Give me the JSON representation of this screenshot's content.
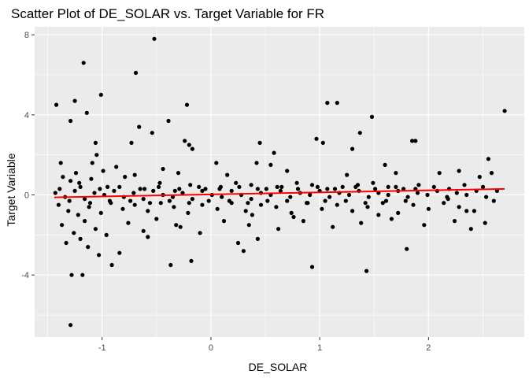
{
  "chart_data": {
    "type": "scatter",
    "title": "Scatter Plot of DE_SOLAR vs. Target Variable for FR",
    "xlabel": "DE_SOLAR",
    "ylabel": "Target Variable",
    "xlim": [
      -1.62,
      2.88
    ],
    "ylim": [
      -7.1,
      8.4
    ],
    "x_ticks": [
      -1,
      0,
      1,
      2
    ],
    "x_tick_labels": [
      "-1",
      "0",
      "1",
      "2"
    ],
    "y_ticks": [
      -4,
      0,
      4,
      8
    ],
    "y_tick_labels": [
      "-4",
      "0",
      "4",
      "8"
    ],
    "grid": true,
    "legend": "none",
    "colors": {
      "panel": "#ebebeb",
      "grid": "#ffffff",
      "points": "#000000",
      "trend": "#ff0000"
    },
    "series": [
      {
        "points": [
          [
            -1.42,
            4.5
          ],
          [
            -1.29,
            3.7
          ],
          [
            -1.25,
            4.7
          ],
          [
            -1.17,
            6.6
          ],
          [
            -1.14,
            4.1
          ],
          [
            -1.01,
            5.0
          ],
          [
            -0.69,
            6.1
          ],
          [
            -0.52,
            7.8
          ],
          [
            -0.66,
            3.4
          ],
          [
            -0.39,
            3.7
          ],
          [
            -0.22,
            4.5
          ],
          [
            -0.24,
            2.7
          ],
          [
            -0.2,
            2.5
          ],
          [
            -0.17,
            2.3
          ],
          [
            -0.54,
            3.1
          ],
          [
            -0.73,
            2.6
          ],
          [
            -1.06,
            2.6
          ],
          [
            -1.05,
            2.0
          ],
          [
            -1.09,
            1.6
          ],
          [
            -1.38,
            1.6
          ],
          [
            -1.28,
            -4.0
          ],
          [
            -1.18,
            -4.0
          ],
          [
            -1.29,
            -6.5
          ],
          [
            -0.91,
            -3.5
          ],
          [
            -0.84,
            -2.9
          ],
          [
            -1.03,
            -3.0
          ],
          [
            -1.13,
            -2.6
          ],
          [
            -0.37,
            -3.5
          ],
          [
            -0.18,
            -3.3
          ],
          [
            -0.32,
            -1.5
          ],
          [
            0.25,
            -2.4
          ],
          [
            0.3,
            -2.8
          ],
          [
            0.43,
            -2.2
          ],
          [
            0.93,
            -3.6
          ],
          [
            1.43,
            -3.8
          ],
          [
            1.8,
            -2.7
          ],
          [
            2.39,
            -1.7
          ],
          [
            0.45,
            2.6
          ],
          [
            0.58,
            2.1
          ],
          [
            0.42,
            1.6
          ],
          [
            0.55,
            1.5
          ],
          [
            0.97,
            2.8
          ],
          [
            1.03,
            2.6
          ],
          [
            1.07,
            4.6
          ],
          [
            1.16,
            4.6
          ],
          [
            1.48,
            3.9
          ],
          [
            1.37,
            3.1
          ],
          [
            1.3,
            2.3
          ],
          [
            1.85,
            2.7
          ],
          [
            1.88,
            2.7
          ],
          [
            2.7,
            4.2
          ],
          [
            2.55,
            1.8
          ],
          [
            1.6,
            1.5
          ],
          [
            2.28,
            1.2
          ],
          [
            2.47,
            0.9
          ],
          [
            2.58,
            1.1
          ],
          [
            2.1,
            1.1
          ],
          [
            0.05,
            1.6
          ],
          [
            -0.44,
            1.3
          ],
          [
            -0.87,
            1.4
          ],
          [
            -1.36,
            0.9
          ],
          [
            -1.29,
            0.7
          ],
          [
            -1.21,
            0.6
          ],
          [
            -1.1,
            0.8
          ],
          [
            -0.95,
            0.4
          ],
          [
            -0.79,
            0.9
          ],
          [
            -0.61,
            0.3
          ],
          [
            -0.47,
            0.6
          ],
          [
            -0.33,
            0.2
          ],
          [
            -0.19,
            0.5
          ],
          [
            -0.05,
            0.3
          ],
          [
            0.09,
            0.4
          ],
          [
            0.23,
            0.6
          ],
          [
            0.37,
            0.5
          ],
          [
            0.51,
            0.3
          ],
          [
            0.65,
            0.4
          ],
          [
            0.79,
            0.6
          ],
          [
            0.93,
            0.5
          ],
          [
            1.07,
            0.3
          ],
          [
            1.21,
            0.4
          ],
          [
            1.35,
            0.5
          ],
          [
            1.49,
            0.6
          ],
          [
            1.63,
            0.4
          ],
          [
            1.77,
            0.3
          ],
          [
            1.91,
            0.5
          ],
          [
            2.05,
            0.4
          ],
          [
            2.19,
            0.3
          ],
          [
            2.33,
            0.5
          ],
          [
            2.5,
            0.4
          ],
          [
            2.63,
            0.2
          ],
          [
            -1.4,
            -0.5
          ],
          [
            -1.31,
            -0.8
          ],
          [
            -1.22,
            -1.0
          ],
          [
            -1.12,
            -0.6
          ],
          [
            -1.01,
            -0.9
          ],
          [
            -0.92,
            -0.4
          ],
          [
            -0.81,
            -0.7
          ],
          [
            -0.7,
            -0.5
          ],
          [
            -0.58,
            -0.8
          ],
          [
            -0.46,
            -0.4
          ],
          [
            -0.34,
            -0.6
          ],
          [
            -0.21,
            -0.9
          ],
          [
            -0.08,
            -0.5
          ],
          [
            0.06,
            -0.7
          ],
          [
            0.19,
            -0.4
          ],
          [
            0.32,
            -0.8
          ],
          [
            0.46,
            -0.5
          ],
          [
            0.6,
            -0.6
          ],
          [
            0.74,
            -0.9
          ],
          [
            0.88,
            -0.4
          ],
          [
            1.02,
            -0.7
          ],
          [
            1.16,
            -0.5
          ],
          [
            1.3,
            -0.8
          ],
          [
            1.44,
            -0.6
          ],
          [
            1.58,
            -0.4
          ],
          [
            1.72,
            -0.9
          ],
          [
            1.86,
            -0.5
          ],
          [
            2.0,
            -0.7
          ],
          [
            2.14,
            -0.4
          ],
          [
            2.28,
            -0.6
          ],
          [
            2.42,
            -0.8
          ],
          [
            2.6,
            -0.3
          ],
          [
            -1.37,
            -1.5
          ],
          [
            -1.26,
            -1.9
          ],
          [
            -1.16,
            -1.3
          ],
          [
            -1.06,
            -1.7
          ],
          [
            -0.96,
            -2.0
          ],
          [
            -0.76,
            -1.4
          ],
          [
            -0.62,
            -1.8
          ],
          [
            -0.5,
            -1.2
          ],
          [
            -0.28,
            -1.6
          ],
          [
            -0.1,
            -1.9
          ],
          [
            0.12,
            -1.3
          ],
          [
            0.35,
            -1.5
          ],
          [
            0.62,
            -1.7
          ],
          [
            0.85,
            -1.3
          ],
          [
            1.12,
            -1.6
          ],
          [
            1.38,
            -1.4
          ],
          [
            1.66,
            -1.2
          ],
          [
            1.96,
            -1.5
          ],
          [
            2.24,
            -1.3
          ],
          [
            2.52,
            -1.4
          ],
          [
            -1.43,
            0.1
          ],
          [
            -1.34,
            -0.1
          ],
          [
            -1.25,
            0.2
          ],
          [
            -1.16,
            -0.2
          ],
          [
            -1.07,
            0.1
          ],
          [
            -0.98,
            0.0
          ],
          [
            -0.89,
            0.2
          ],
          [
            -0.8,
            -0.1
          ],
          [
            -0.71,
            0.1
          ],
          [
            -0.62,
            -0.2
          ],
          [
            -0.53,
            0.2
          ],
          [
            -0.44,
            0.0
          ],
          [
            -0.35,
            -0.1
          ],
          [
            -0.26,
            0.1
          ],
          [
            -0.17,
            -0.2
          ],
          [
            -0.08,
            0.2
          ],
          [
            0.01,
            0.0
          ],
          [
            0.1,
            -0.1
          ],
          [
            0.19,
            0.2
          ],
          [
            0.28,
            0.0
          ],
          [
            0.37,
            -0.2
          ],
          [
            0.46,
            0.1
          ],
          [
            0.55,
            0.0
          ],
          [
            0.64,
            0.2
          ],
          [
            0.73,
            -0.1
          ],
          [
            0.82,
            0.1
          ],
          [
            0.91,
            0.0
          ],
          [
            1.0,
            0.2
          ],
          [
            1.09,
            -0.1
          ],
          [
            1.18,
            0.1
          ],
          [
            1.27,
            0.0
          ],
          [
            1.36,
            0.2
          ],
          [
            1.45,
            -0.1
          ],
          [
            1.54,
            0.1
          ],
          [
            1.63,
            0.0
          ],
          [
            1.72,
            0.2
          ],
          [
            1.81,
            -0.1
          ],
          [
            1.9,
            0.1
          ],
          [
            1.99,
            0.0
          ],
          [
            2.08,
            0.2
          ],
          [
            2.17,
            -0.1
          ],
          [
            2.26,
            0.1
          ],
          [
            2.35,
            0.0
          ],
          [
            2.44,
            0.2
          ],
          [
            2.53,
            -0.1
          ],
          [
            -1.39,
            0.3
          ],
          [
            -1.3,
            -0.3
          ],
          [
            -1.2,
            0.4
          ],
          [
            -1.11,
            -0.4
          ],
          [
            -1.02,
            0.3
          ],
          [
            -0.93,
            -0.3
          ],
          [
            -0.84,
            0.4
          ],
          [
            -0.74,
            -0.3
          ],
          [
            -0.65,
            0.3
          ],
          [
            -0.56,
            -0.4
          ],
          [
            -0.48,
            0.4
          ],
          [
            -0.38,
            -0.3
          ],
          [
            -0.29,
            0.3
          ],
          [
            -0.2,
            -0.4
          ],
          [
            -0.11,
            0.4
          ],
          [
            -0.02,
            -0.3
          ],
          [
            0.08,
            0.3
          ],
          [
            0.17,
            -0.3
          ],
          [
            0.26,
            0.4
          ],
          [
            0.34,
            -0.4
          ],
          [
            0.43,
            0.3
          ],
          [
            0.52,
            -0.3
          ],
          [
            0.61,
            0.4
          ],
          [
            0.7,
            -0.3
          ],
          [
            0.8,
            0.3
          ],
          [
            0.89,
            -0.4
          ],
          [
            0.98,
            0.4
          ],
          [
            1.05,
            -0.3
          ],
          [
            1.14,
            0.3
          ],
          [
            1.24,
            -0.3
          ],
          [
            1.33,
            0.4
          ],
          [
            1.42,
            -0.4
          ],
          [
            1.51,
            0.3
          ],
          [
            1.61,
            -0.3
          ],
          [
            1.7,
            0.4
          ],
          [
            1.79,
            -0.3
          ],
          [
            1.88,
            0.3
          ],
          [
            -1.24,
            1.1
          ],
          [
            -0.99,
            1.2
          ],
          [
            -0.7,
            1.0
          ],
          [
            -0.3,
            1.1
          ],
          [
            0.15,
            1.0
          ],
          [
            0.7,
            1.2
          ],
          [
            1.25,
            1.0
          ],
          [
            1.7,
            1.1
          ],
          [
            -1.33,
            -2.4
          ],
          [
            -1.2,
            -2.2
          ],
          [
            -0.58,
            -2.1
          ],
          [
            0.38,
            -1.0
          ],
          [
            0.76,
            -1.1
          ],
          [
            1.54,
            -1.0
          ],
          [
            2.18,
            -0.2
          ],
          [
            2.35,
            -0.8
          ]
        ]
      }
    ],
    "trend": {
      "x": [
        -1.44,
        2.7
      ],
      "y": [
        -0.12,
        0.3
      ]
    }
  }
}
